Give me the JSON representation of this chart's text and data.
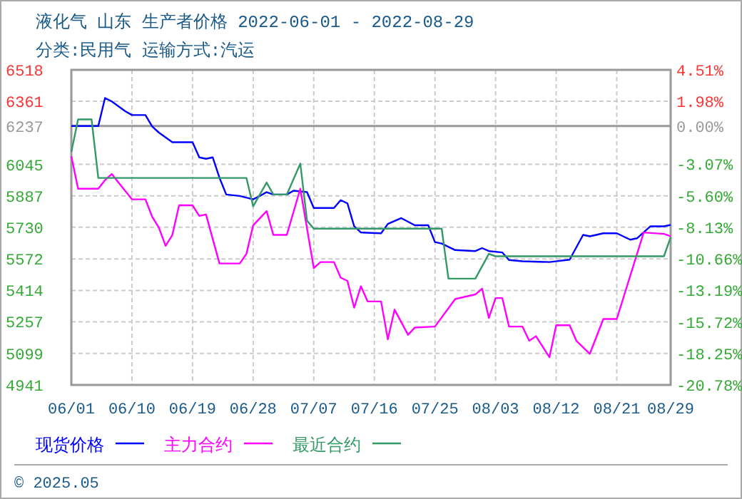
{
  "chart_data": {
    "type": "line",
    "title": "液化气 山东 生产者价格 2022-06-01 - 2022-08-29",
    "subtitle": "分类:民用气 运输方式:汽运",
    "xlim": [
      "2022-06-01",
      "2022-08-29"
    ],
    "xticks": [
      {
        "value": "2022-06-01",
        "label": "06/01"
      },
      {
        "value": "2022-06-10",
        "label": "06/10"
      },
      {
        "value": "2022-06-19",
        "label": "06/19"
      },
      {
        "value": "2022-06-28",
        "label": "06/28"
      },
      {
        "value": "2022-07-07",
        "label": "07/07"
      },
      {
        "value": "2022-07-16",
        "label": "07/16"
      },
      {
        "value": "2022-07-25",
        "label": "07/25"
      },
      {
        "value": "2022-08-03",
        "label": "08/03"
      },
      {
        "value": "2022-08-12",
        "label": "08/12"
      },
      {
        "value": "2022-08-21",
        "label": "08/21"
      },
      {
        "value": "2022-08-29",
        "label": "08/29"
      }
    ],
    "ylim": [
      4941,
      6518
    ],
    "yticks": [
      4941,
      5099,
      5257,
      5414,
      5572,
      5730,
      5887,
      6045,
      6237,
      6361,
      6518
    ],
    "y2lim": [
      -20.78,
      4.51
    ],
    "y2ticks": [
      {
        "value": -20.78,
        "label": "-20.78%"
      },
      {
        "value": -18.25,
        "label": "-18.25%"
      },
      {
        "value": -15.72,
        "label": "-15.72%"
      },
      {
        "value": -13.19,
        "label": "-13.19%"
      },
      {
        "value": -10.66,
        "label": "-10.66%"
      },
      {
        "value": -8.13,
        "label": "-8.13%"
      },
      {
        "value": -5.6,
        "label": "-5.60%"
      },
      {
        "value": -3.07,
        "label": "-3.07%"
      },
      {
        "value": 0,
        "label": "0.00%"
      },
      {
        "value": 1.98,
        "label": "1.98%"
      },
      {
        "value": 4.51,
        "label": "4.51%"
      }
    ],
    "ref_lines": [
      {
        "axis": "y",
        "value": 6237,
        "color": "#999999"
      }
    ],
    "grid": true,
    "legend": "bottom",
    "line_style": "solid",
    "marker": "none",
    "annotations": [
      "© 2025.05"
    ],
    "series": [
      {
        "name": "现货价格",
        "color": "#0000ff",
        "x": [
          "2022-06-01",
          "2022-06-05",
          "2022-06-06",
          "2022-06-07",
          "2022-06-09",
          "2022-06-10",
          "2022-06-12",
          "2022-06-13",
          "2022-06-14",
          "2022-06-16",
          "2022-06-19",
          "2022-06-20",
          "2022-06-21",
          "2022-06-22",
          "2022-06-23",
          "2022-06-24",
          "2022-06-26",
          "2022-06-28",
          "2022-06-29",
          "2022-06-30",
          "2022-07-01",
          "2022-07-03",
          "2022-07-04",
          "2022-07-06",
          "2022-07-07",
          "2022-07-10",
          "2022-07-11",
          "2022-07-12",
          "2022-07-13",
          "2022-07-14",
          "2022-07-17",
          "2022-07-18",
          "2022-07-20",
          "2022-07-22",
          "2022-07-24",
          "2022-07-25",
          "2022-07-26",
          "2022-07-28",
          "2022-07-31",
          "2022-08-01",
          "2022-08-02",
          "2022-08-04",
          "2022-08-05",
          "2022-08-07",
          "2022-08-11",
          "2022-08-14",
          "2022-08-16",
          "2022-08-17",
          "2022-08-19",
          "2022-08-21",
          "2022-08-23",
          "2022-08-24",
          "2022-08-26",
          "2022-08-28",
          "2022-08-29"
        ],
        "values": [
          6237,
          6237,
          6377,
          6360,
          6311,
          6292,
          6292,
          6235,
          6204,
          6156,
          6156,
          6080,
          6073,
          6080,
          5978,
          5894,
          5887,
          5870,
          5887,
          5906,
          5894,
          5894,
          5913,
          5906,
          5827,
          5827,
          5866,
          5850,
          5735,
          5704,
          5700,
          5747,
          5776,
          5740,
          5740,
          5656,
          5649,
          5616,
          5611,
          5626,
          5611,
          5604,
          5566,
          5560,
          5556,
          5568,
          5692,
          5685,
          5700,
          5700,
          5668,
          5675,
          5735,
          5735,
          5742
        ]
      },
      {
        "name": "主力合约",
        "color": "#ff00ff",
        "x": [
          "2022-06-01",
          "2022-06-02",
          "2022-06-05",
          "2022-06-06",
          "2022-06-07",
          "2022-06-08",
          "2022-06-10",
          "2022-06-12",
          "2022-06-13",
          "2022-06-14",
          "2022-06-15",
          "2022-06-16",
          "2022-06-17",
          "2022-06-19",
          "2022-06-20",
          "2022-06-21",
          "2022-06-23",
          "2022-06-26",
          "2022-06-27",
          "2022-06-28",
          "2022-06-30",
          "2022-07-01",
          "2022-07-03",
          "2022-07-05",
          "2022-07-07",
          "2022-07-08",
          "2022-07-10",
          "2022-07-11",
          "2022-07-12",
          "2022-07-13",
          "2022-07-14",
          "2022-07-15",
          "2022-07-17",
          "2022-07-18",
          "2022-07-19",
          "2022-07-21",
          "2022-07-22",
          "2022-07-25",
          "2022-07-28",
          "2022-07-31",
          "2022-08-01",
          "2022-08-02",
          "2022-08-03",
          "2022-08-04",
          "2022-08-05",
          "2022-08-07",
          "2022-08-08",
          "2022-08-09",
          "2022-08-11",
          "2022-08-12",
          "2022-08-14",
          "2022-08-15",
          "2022-08-17",
          "2022-08-19",
          "2022-08-21",
          "2022-08-25",
          "2022-08-28",
          "2022-08-29"
        ],
        "values": [
          6085,
          5923,
          5923,
          5966,
          5997,
          5954,
          5870,
          5870,
          5783,
          5728,
          5637,
          5692,
          5840,
          5840,
          5787,
          5794,
          5549,
          5549,
          5597,
          5740,
          5811,
          5692,
          5692,
          5923,
          5526,
          5556,
          5556,
          5478,
          5462,
          5328,
          5435,
          5359,
          5359,
          5169,
          5318,
          5192,
          5228,
          5233,
          5371,
          5394,
          5423,
          5276,
          5376,
          5376,
          5233,
          5233,
          5162,
          5185,
          5080,
          5240,
          5240,
          5162,
          5097,
          5271,
          5271,
          5704,
          5697,
          5685
        ]
      },
      {
        "name": "最近合约",
        "color": "#339966",
        "x": [
          "2022-06-01",
          "2022-06-02",
          "2022-06-04",
          "2022-06-05",
          "2022-06-27",
          "2022-06-28",
          "2022-06-30",
          "2022-07-01",
          "2022-07-03",
          "2022-07-05",
          "2022-07-06",
          "2022-07-07",
          "2022-07-26",
          "2022-07-27",
          "2022-07-31",
          "2022-08-02",
          "2022-08-03",
          "2022-08-28",
          "2022-08-29"
        ],
        "values": [
          6108,
          6270,
          6270,
          5977,
          5977,
          5835,
          5954,
          5894,
          5894,
          6049,
          5763,
          5723,
          5723,
          5473,
          5473,
          5597,
          5585,
          5585,
          5680
        ]
      }
    ]
  }
}
